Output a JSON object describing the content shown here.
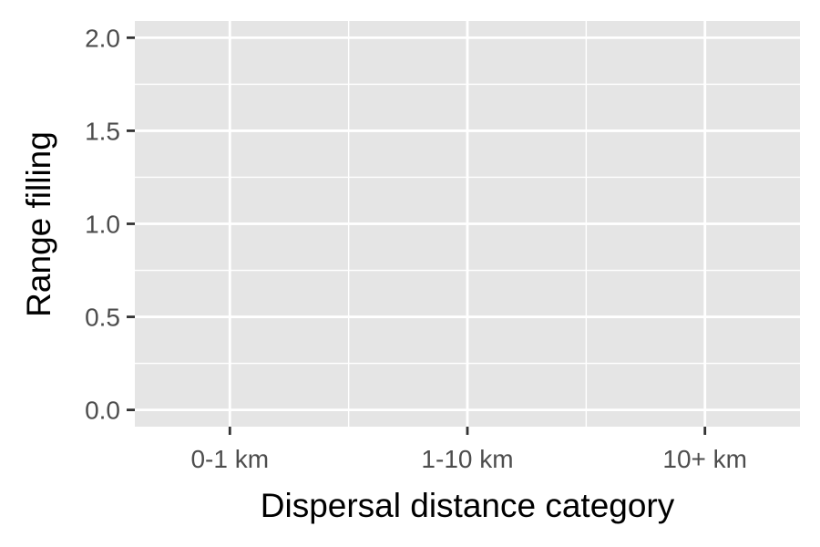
{
  "chart_data": {
    "type": "scatter",
    "title": "",
    "xlabel": "Dispersal distance category",
    "ylabel": "Range filling",
    "categories": [
      "0-1 km",
      "1-10 km",
      "10+ km"
    ],
    "ylim": [
      -0.09,
      2.09
    ],
    "yticks": [
      0.0,
      0.5,
      1.0,
      1.5,
      2.0
    ],
    "ytick_labels": [
      "0.0",
      "0.5",
      "1.0",
      "1.5",
      "2.0"
    ],
    "series": [],
    "grid": true,
    "legend": "none"
  },
  "colors": {
    "panel_background": "#e5e5e5",
    "grid": "#ffffff",
    "tick_mark": "#333333",
    "tick_text": "#4d4d4d",
    "axis_title": "#000000"
  }
}
